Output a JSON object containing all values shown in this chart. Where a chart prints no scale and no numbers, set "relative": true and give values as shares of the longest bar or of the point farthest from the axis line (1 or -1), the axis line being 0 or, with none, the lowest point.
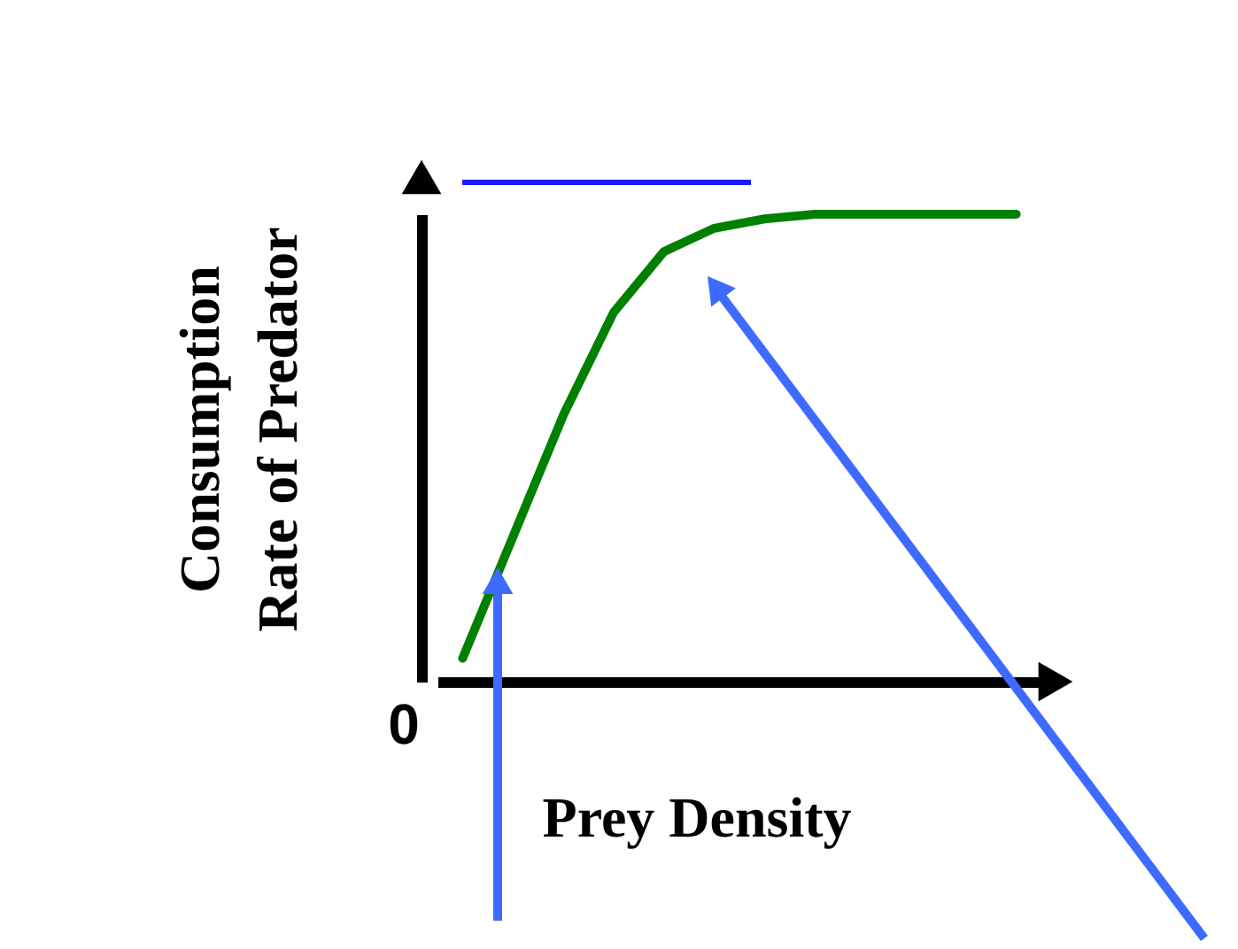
{
  "chart_data": {
    "type": "line",
    "relative": true,
    "xlabel": "Prey Density",
    "ylabel": "Consumption\nRate of Predator",
    "categories": [
      null,
      null,
      null,
      null,
      null,
      null,
      null,
      null,
      null,
      null,
      null,
      null
    ],
    "values": [
      0.05,
      0.31,
      0.57,
      0.79,
      0.92,
      0.97,
      0.99,
      1,
      1,
      1,
      1,
      1
    ],
    "color": "#008000",
    "annotations": [
      "0"
    ]
  }
}
